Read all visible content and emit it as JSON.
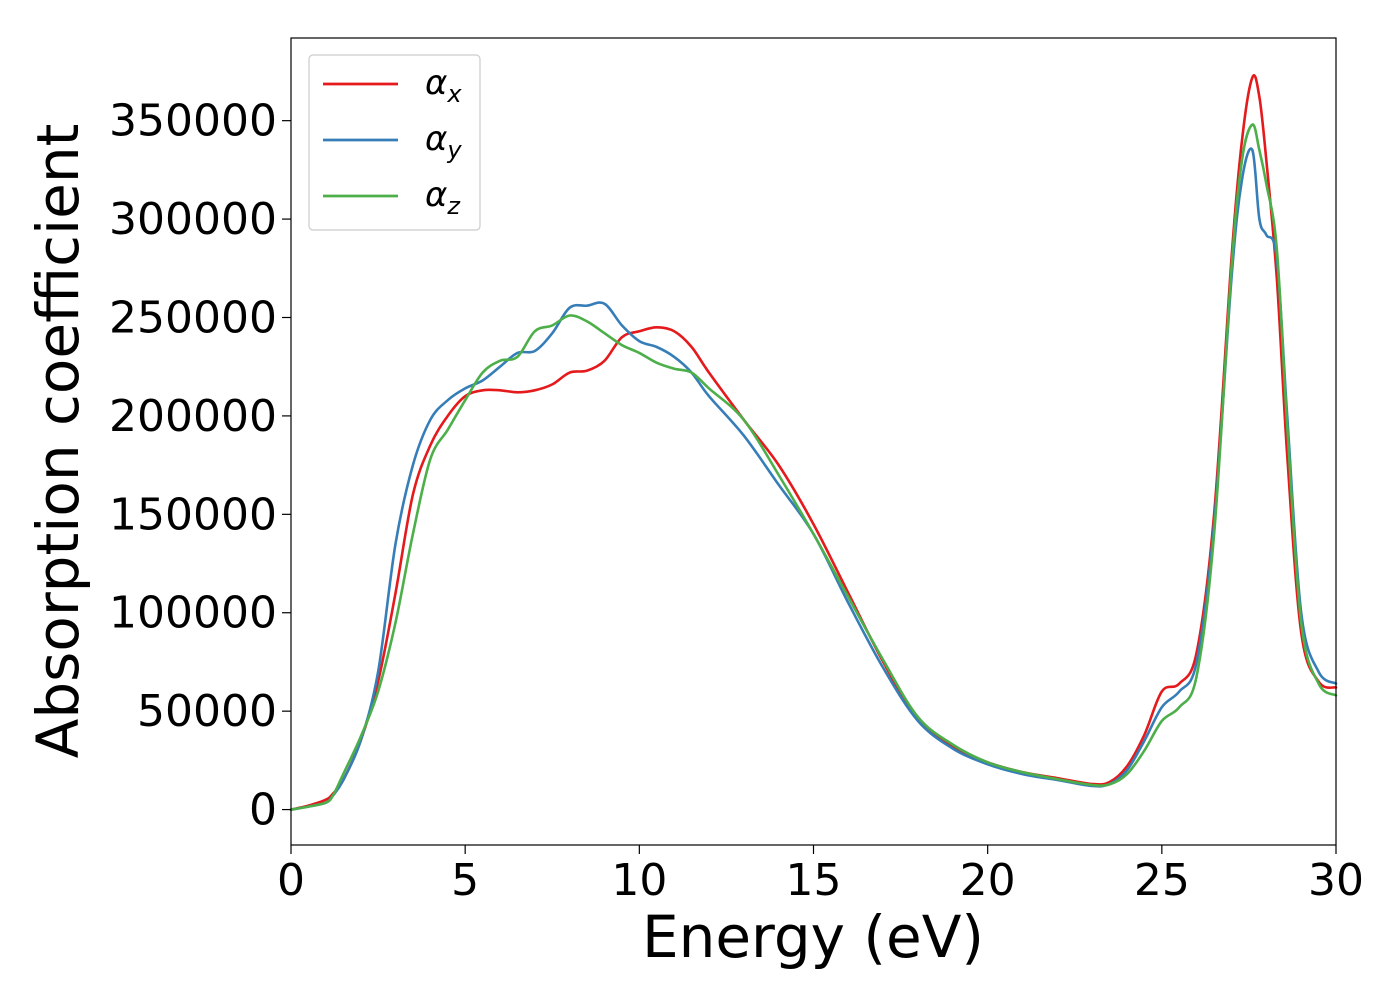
{
  "chart_data": {
    "type": "line",
    "xlabel": "Energy (eV)",
    "ylabel": "Absorption coefficient",
    "xlim": [
      0,
      30
    ],
    "ylim": [
      -18000,
      392000
    ],
    "xticks": [
      0,
      5,
      10,
      15,
      20,
      25,
      30
    ],
    "yticks": [
      0,
      50000,
      100000,
      150000,
      200000,
      250000,
      300000,
      350000
    ],
    "grid": false,
    "legend_position": "top-left",
    "series": [
      {
        "name": "α_x",
        "label_main": "α",
        "label_sub": "x",
        "color": "#e41a1c",
        "x": [
          0,
          0.5,
          1,
          1.2,
          1.5,
          2,
          2.5,
          3,
          3.5,
          4,
          4.5,
          5,
          5.5,
          6,
          6.5,
          7,
          7.5,
          8,
          8.5,
          9,
          9.5,
          10,
          10.5,
          11,
          11.5,
          12,
          13,
          14,
          15,
          16,
          17,
          18,
          19,
          20,
          21,
          22,
          23,
          23.5,
          24,
          24.5,
          25,
          25.5,
          26,
          26.5,
          27,
          27.3,
          27.6,
          27.8,
          28,
          28.3,
          28.6,
          29,
          29.5,
          30
        ],
        "y": [
          0,
          2000,
          5000,
          8000,
          15000,
          35000,
          65000,
          110000,
          160000,
          185000,
          200000,
          210000,
          213000,
          213000,
          212000,
          213000,
          216000,
          222000,
          223000,
          228000,
          240000,
          243000,
          245000,
          243000,
          235000,
          222000,
          198000,
          175000,
          145000,
          110000,
          75000,
          46000,
          32000,
          24000,
          19000,
          16000,
          13000,
          14000,
          22000,
          38000,
          60000,
          64000,
          80000,
          150000,
          280000,
          340000,
          372000,
          362000,
          330000,
          270000,
          180000,
          90000,
          65000,
          62000
        ]
      },
      {
        "name": "α_y",
        "label_main": "α",
        "label_sub": "y",
        "color": "#377eb8",
        "x": [
          0,
          0.5,
          1,
          1.2,
          1.5,
          2,
          2.5,
          3,
          3.5,
          4,
          4.5,
          5,
          5.5,
          6,
          6.5,
          7,
          7.5,
          8,
          8.5,
          9,
          9.5,
          10,
          10.5,
          11,
          11.5,
          12,
          13,
          14,
          15,
          16,
          17,
          18,
          19,
          20,
          21,
          22,
          23,
          23.5,
          24,
          24.5,
          25,
          25.5,
          26,
          26.5,
          27,
          27.3,
          27.6,
          27.8,
          28,
          28.3,
          28.6,
          29,
          29.5,
          30
        ],
        "y": [
          0,
          1500,
          3500,
          7000,
          15000,
          35000,
          70000,
          135000,
          175000,
          198000,
          208000,
          214000,
          218000,
          225000,
          232000,
          233000,
          242000,
          255000,
          256000,
          257000,
          246000,
          238000,
          235000,
          230000,
          222000,
          210000,
          190000,
          165000,
          140000,
          105000,
          72000,
          45000,
          31000,
          23000,
          18000,
          15000,
          12000,
          13000,
          20000,
          35000,
          52000,
          60000,
          75000,
          145000,
          270000,
          320000,
          335000,
          300000,
          292000,
          280000,
          200000,
          100000,
          70000,
          64000
        ]
      },
      {
        "name": "α_z",
        "label_main": "α",
        "label_sub": "z",
        "color": "#4daf4a",
        "x": [
          0,
          0.5,
          1,
          1.2,
          1.5,
          2,
          2.5,
          3,
          3.5,
          4,
          4.5,
          5,
          5.5,
          6,
          6.5,
          7,
          7.5,
          8,
          8.5,
          9,
          9.5,
          10,
          10.5,
          11,
          11.5,
          12,
          13,
          14,
          15,
          16,
          17,
          18,
          19,
          20,
          21,
          22,
          23,
          23.5,
          24,
          24.5,
          25,
          25.5,
          26,
          26.5,
          27,
          27.3,
          27.6,
          27.8,
          28,
          28.3,
          28.6,
          29,
          29.5,
          30
        ],
        "y": [
          0,
          1500,
          3500,
          7000,
          18000,
          37000,
          60000,
          95000,
          140000,
          178000,
          193000,
          208000,
          222000,
          228000,
          230000,
          243000,
          246000,
          251000,
          248000,
          242000,
          236000,
          232000,
          227000,
          224000,
          222000,
          214000,
          198000,
          170000,
          140000,
          108000,
          76000,
          47000,
          33000,
          24000,
          19000,
          15500,
          12500,
          12800,
          18000,
          30000,
          45000,
          52000,
          68000,
          140000,
          275000,
          330000,
          348000,
          335000,
          318000,
          285000,
          195000,
          95000,
          64000,
          58000
        ]
      }
    ]
  }
}
